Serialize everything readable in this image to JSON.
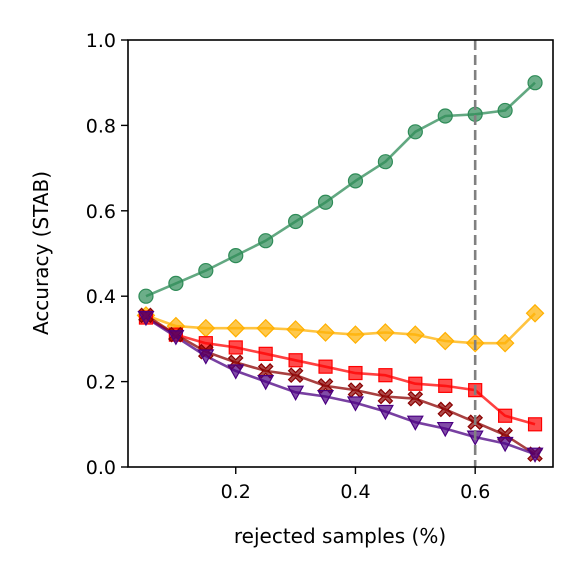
{
  "chart_data": {
    "type": "line",
    "xlabel": "rejected samples (%)",
    "ylabel": "Accuracy (STAB)",
    "xlim": [
      0.02,
      0.73
    ],
    "ylim": [
      0.0,
      1.0
    ],
    "xticks": [
      0.2,
      0.4,
      0.6
    ],
    "xtick_labels": [
      "0.2",
      "0.4",
      "0.6"
    ],
    "yticks": [
      0.0,
      0.2,
      0.4,
      0.6,
      0.8,
      1.0
    ],
    "ytick_labels": [
      "0.0",
      "0.2",
      "0.4",
      "0.6",
      "0.8",
      "1.0"
    ],
    "grid": false,
    "legend": "none",
    "reference_line": {
      "x": 0.6,
      "style": "dashed",
      "color": "#808080"
    },
    "x": [
      0.05,
      0.1,
      0.15,
      0.2,
      0.25,
      0.3,
      0.35,
      0.4,
      0.45,
      0.5,
      0.55,
      0.6,
      0.65,
      0.7
    ],
    "series": [
      {
        "color": "#2e8b57",
        "marker": "circle",
        "values": [
          0.4,
          0.43,
          0.46,
          0.495,
          0.53,
          0.575,
          0.62,
          0.67,
          0.715,
          0.785,
          0.822,
          0.826,
          0.835,
          0.9
        ]
      },
      {
        "color": "#ffb000",
        "marker": "diamond",
        "values": [
          0.355,
          0.33,
          0.325,
          0.325,
          0.325,
          0.322,
          0.315,
          0.31,
          0.315,
          0.31,
          0.295,
          0.29,
          0.29,
          0.36
        ]
      },
      {
        "color": "#ff0000",
        "marker": "square",
        "values": [
          0.35,
          0.31,
          0.29,
          0.28,
          0.265,
          0.25,
          0.235,
          0.22,
          0.215,
          0.195,
          0.19,
          0.18,
          0.12,
          0.1
        ]
      },
      {
        "color": "#8b0000",
        "marker": "x-filled",
        "values": [
          0.355,
          0.31,
          0.27,
          0.245,
          0.225,
          0.215,
          0.19,
          0.18,
          0.165,
          0.16,
          0.135,
          0.105,
          0.075,
          0.03
        ]
      },
      {
        "color": "#4b0082",
        "marker": "triangle-down",
        "values": [
          0.35,
          0.305,
          0.26,
          0.225,
          0.2,
          0.175,
          0.165,
          0.15,
          0.13,
          0.105,
          0.09,
          0.07,
          0.055,
          0.03
        ]
      }
    ]
  }
}
